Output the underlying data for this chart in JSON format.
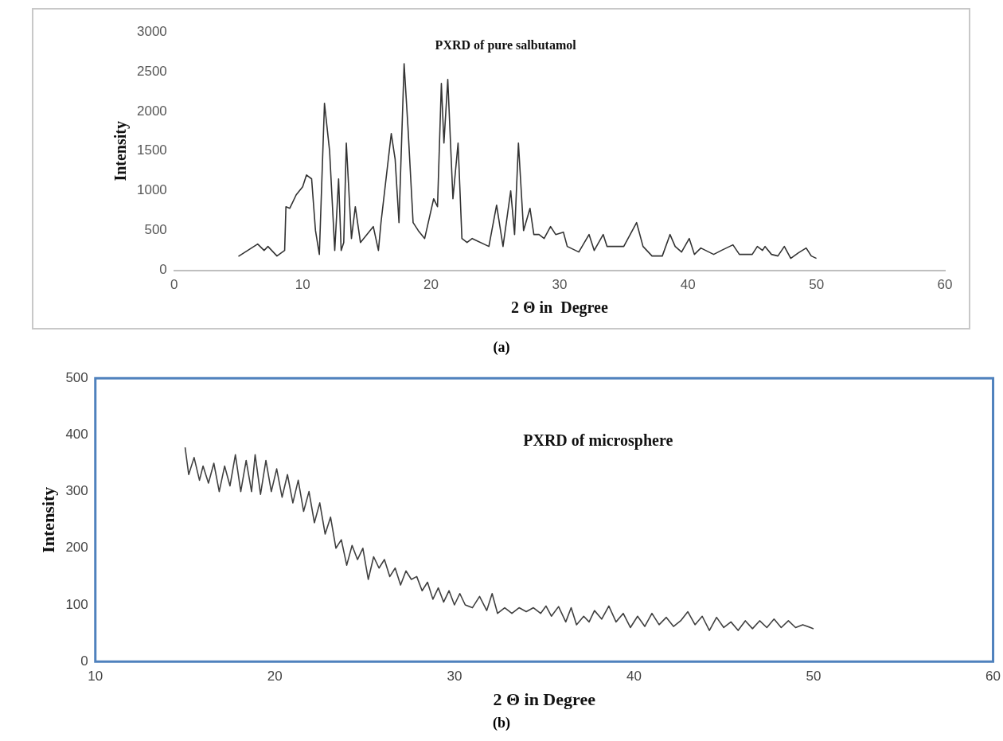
{
  "chart_data": [
    {
      "type": "line",
      "title": "PXRD of pure salbutamol",
      "xlabel": "2 Θ in  Degree",
      "ylabel": "Intensity",
      "color": "#333333",
      "marker": "none",
      "annotations": [
        "(a)"
      ],
      "xlim": [
        0,
        60
      ],
      "xticks": [
        0,
        10,
        20,
        30,
        40,
        50,
        60
      ],
      "ylim": [
        0,
        3000
      ],
      "yticks": [
        0,
        500,
        1000,
        1500,
        2000,
        2500,
        3000
      ],
      "x": [
        5,
        6.5,
        7,
        7.3,
        8,
        8.6,
        8.7,
        9,
        9.5,
        10,
        10.3,
        10.7,
        11,
        11.3,
        11.7,
        12.1,
        12.5,
        12.8,
        13,
        13.2,
        13.4,
        13.8,
        14.1,
        14.5,
        15,
        15.5,
        15.9,
        16.1,
        16.9,
        17.2,
        17.5,
        17.9,
        18.2,
        18.6,
        19,
        19.5,
        20.2,
        20.5,
        20.8,
        21,
        21.3,
        21.7,
        22.1,
        22.4,
        22.8,
        23.2,
        24.5,
        25.1,
        25.6,
        26.2,
        26.5,
        26.8,
        27.2,
        27.7,
        28,
        28.4,
        28.8,
        29.3,
        29.7,
        30.3,
        30.6,
        31.5,
        32.3,
        32.7,
        33.4,
        33.7,
        35,
        36,
        36.5,
        37.2,
        38,
        38.6,
        39,
        39.5,
        40.1,
        40.5,
        41,
        42,
        42.6,
        43.5,
        44,
        45,
        45.4,
        45.8,
        46,
        46.5,
        47,
        47.5,
        48,
        48.6,
        49.2,
        49.6,
        50
      ],
      "values": [
        175,
        330,
        250,
        300,
        180,
        250,
        800,
        780,
        950,
        1050,
        1200,
        1150,
        500,
        200,
        2100,
        1500,
        250,
        1150,
        250,
        350,
        1600,
        400,
        800,
        350,
        450,
        550,
        250,
        600,
        1720,
        1400,
        600,
        2600,
        1800,
        600,
        500,
        400,
        900,
        800,
        2350,
        1600,
        2400,
        900,
        1600,
        400,
        350,
        400,
        300,
        820,
        300,
        1000,
        450,
        1600,
        500,
        780,
        450,
        450,
        400,
        550,
        450,
        480,
        300,
        230,
        450,
        250,
        450,
        300,
        300,
        600,
        300,
        180,
        180,
        450,
        300,
        230,
        400,
        200,
        280,
        200,
        250,
        320,
        200,
        200,
        300,
        250,
        300,
        200,
        180,
        300,
        150,
        220,
        280,
        180,
        150
      ]
    },
    {
      "type": "line",
      "title": "PXRD of microsphere",
      "xlabel": "2 Θ in Degree",
      "ylabel": "Intensity",
      "color": "#404040",
      "marker": "none",
      "annotations": [
        "(b)"
      ],
      "xlim": [
        10,
        60
      ],
      "xticks": [
        10,
        20,
        30,
        40,
        50,
        60
      ],
      "ylim": [
        0,
        500
      ],
      "yticks": [
        0,
        100,
        200,
        300,
        400,
        500
      ],
      "x": [
        15,
        15.2,
        15.5,
        15.8,
        16,
        16.3,
        16.6,
        16.9,
        17.2,
        17.5,
        17.8,
        18.1,
        18.4,
        18.7,
        18.9,
        19.2,
        19.5,
        19.8,
        20.1,
        20.4,
        20.7,
        21,
        21.3,
        21.6,
        21.9,
        22.2,
        22.5,
        22.8,
        23.1,
        23.4,
        23.7,
        24,
        24.3,
        24.6,
        24.9,
        25.2,
        25.5,
        25.8,
        26.1,
        26.4,
        26.7,
        27,
        27.3,
        27.6,
        27.9,
        28.2,
        28.5,
        28.8,
        29.1,
        29.4,
        29.7,
        30,
        30.3,
        30.6,
        31,
        31.4,
        31.8,
        32.1,
        32.4,
        32.8,
        33.2,
        33.6,
        34,
        34.4,
        34.8,
        35.1,
        35.4,
        35.8,
        36.2,
        36.5,
        36.8,
        37.2,
        37.5,
        37.8,
        38.2,
        38.6,
        39,
        39.4,
        39.8,
        40.2,
        40.6,
        41,
        41.4,
        41.8,
        42.2,
        42.6,
        43,
        43.4,
        43.8,
        44.2,
        44.6,
        45,
        45.4,
        45.8,
        46.2,
        46.6,
        47,
        47.4,
        47.8,
        48.2,
        48.6,
        49,
        49.4,
        50
      ],
      "values": [
        378,
        330,
        360,
        320,
        345,
        315,
        350,
        300,
        345,
        310,
        365,
        300,
        355,
        300,
        365,
        295,
        355,
        300,
        340,
        290,
        330,
        280,
        320,
        265,
        300,
        245,
        280,
        225,
        255,
        200,
        215,
        170,
        205,
        180,
        200,
        145,
        185,
        165,
        180,
        150,
        165,
        135,
        160,
        145,
        150,
        125,
        140,
        110,
        130,
        105,
        125,
        100,
        120,
        100,
        95,
        115,
        90,
        120,
        85,
        95,
        85,
        95,
        88,
        95,
        85,
        98,
        80,
        97,
        70,
        95,
        65,
        80,
        70,
        90,
        75,
        98,
        70,
        85,
        60,
        80,
        62,
        85,
        65,
        78,
        62,
        72,
        88,
        65,
        80,
        55,
        78,
        60,
        70,
        55,
        72,
        58,
        72,
        60,
        75,
        60,
        72,
        60,
        65,
        58
      ]
    }
  ]
}
